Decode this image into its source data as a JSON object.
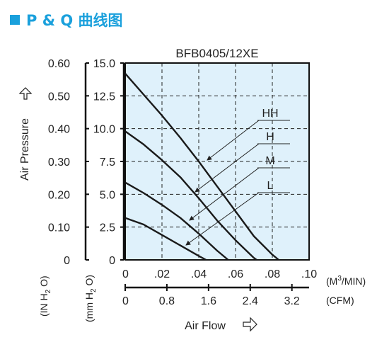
{
  "header": {
    "title": "P & Q 曲线图",
    "title_color": "#1aa0dc"
  },
  "chart_data": {
    "type": "line",
    "title": "BFB0405/12XE",
    "xlabel": "Air Flow",
    "ylabel": "Air Pressure",
    "plot_background": "#dff1fb",
    "grid": true,
    "x_axes": [
      {
        "name": "M3/MIN",
        "unit": "(M³/MIN)",
        "range": [
          0,
          0.1
        ],
        "ticks": [
          0,
          0.02,
          0.04,
          0.06,
          0.08,
          0.1
        ],
        "tick_labels": [
          "0",
          ".02",
          ".04",
          ".06",
          ".08",
          ".10"
        ]
      },
      {
        "name": "CFM",
        "unit": "(CFM)",
        "range": [
          0,
          3.53
        ],
        "ticks": [
          0,
          0.8,
          1.6,
          2.4,
          3.2
        ],
        "tick_labels": [
          "0",
          "0.8",
          "1.6",
          "2.4",
          "3.2"
        ]
      }
    ],
    "y_axes": [
      {
        "name": "IN H2O",
        "unit_parts": [
          "(IN H",
          "2",
          " O)"
        ],
        "range": [
          0,
          0.6
        ],
        "ticks": [
          0,
          0.1,
          0.2,
          0.3,
          0.4,
          0.5,
          0.6
        ],
        "tick_labels": [
          "0",
          "0.10",
          "0.20",
          "0.30",
          "0.40",
          "0.50",
          "0.60"
        ]
      },
      {
        "name": "mm H2O",
        "unit_parts": [
          "(mm H",
          "2",
          " O)"
        ],
        "range": [
          0,
          15
        ],
        "ticks": [
          0,
          2.5,
          5,
          7.5,
          10,
          12.5,
          15
        ],
        "tick_labels": [
          "0",
          "2.5",
          "5.0",
          "7.5",
          "10.0",
          "12.5",
          "15.0"
        ]
      }
    ],
    "series": [
      {
        "name": "HH",
        "x": [
          0,
          0.01,
          0.02,
          0.03,
          0.04,
          0.05,
          0.06,
          0.07,
          0.08,
          0.0835
        ],
        "y": [
          14.2,
          12.6,
          11.0,
          9.3,
          7.5,
          5.6,
          3.7,
          1.8,
          0.4,
          0
        ]
      },
      {
        "name": "H",
        "x": [
          0,
          0.01,
          0.02,
          0.03,
          0.04,
          0.05,
          0.06,
          0.07,
          0.0715
        ],
        "y": [
          9.8,
          8.8,
          7.6,
          6.3,
          4.7,
          3.0,
          1.5,
          0.15,
          0
        ]
      },
      {
        "name": "M",
        "x": [
          0,
          0.01,
          0.02,
          0.03,
          0.04,
          0.05,
          0.056
        ],
        "y": [
          5.9,
          5.1,
          4.2,
          3.2,
          2.0,
          0.7,
          0
        ]
      },
      {
        "name": "L",
        "x": [
          0,
          0.01,
          0.02,
          0.03,
          0.04,
          0.044
        ],
        "y": [
          3.2,
          2.7,
          1.9,
          1.1,
          0.3,
          0
        ]
      }
    ]
  }
}
